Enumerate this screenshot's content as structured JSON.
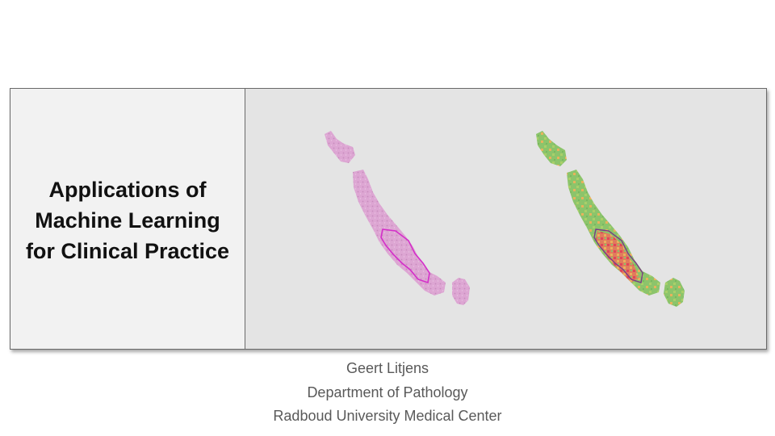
{
  "slide": {
    "title_lines": [
      "Applications of",
      "Machine Learning",
      "for Clinical Practice"
    ],
    "author": "Geert  Litjens",
    "department": "Department  of Pathology",
    "institution": "Radboud  University  Medical  Center"
  },
  "images": {
    "left": "he-stained-tissue-section",
    "right": "cancer-probability-heatmap"
  },
  "colors": {
    "panel_bg": "#e4e4e4",
    "title_bg": "#f2f2f2",
    "tissue_pink": "#dba3d0",
    "annotation_magenta": "#d42ec9",
    "heatmap_green": "#8cc46b",
    "heatmap_orange": "#e8b25c",
    "heatmap_red": "#e0455a",
    "credits_text": "#595959"
  }
}
